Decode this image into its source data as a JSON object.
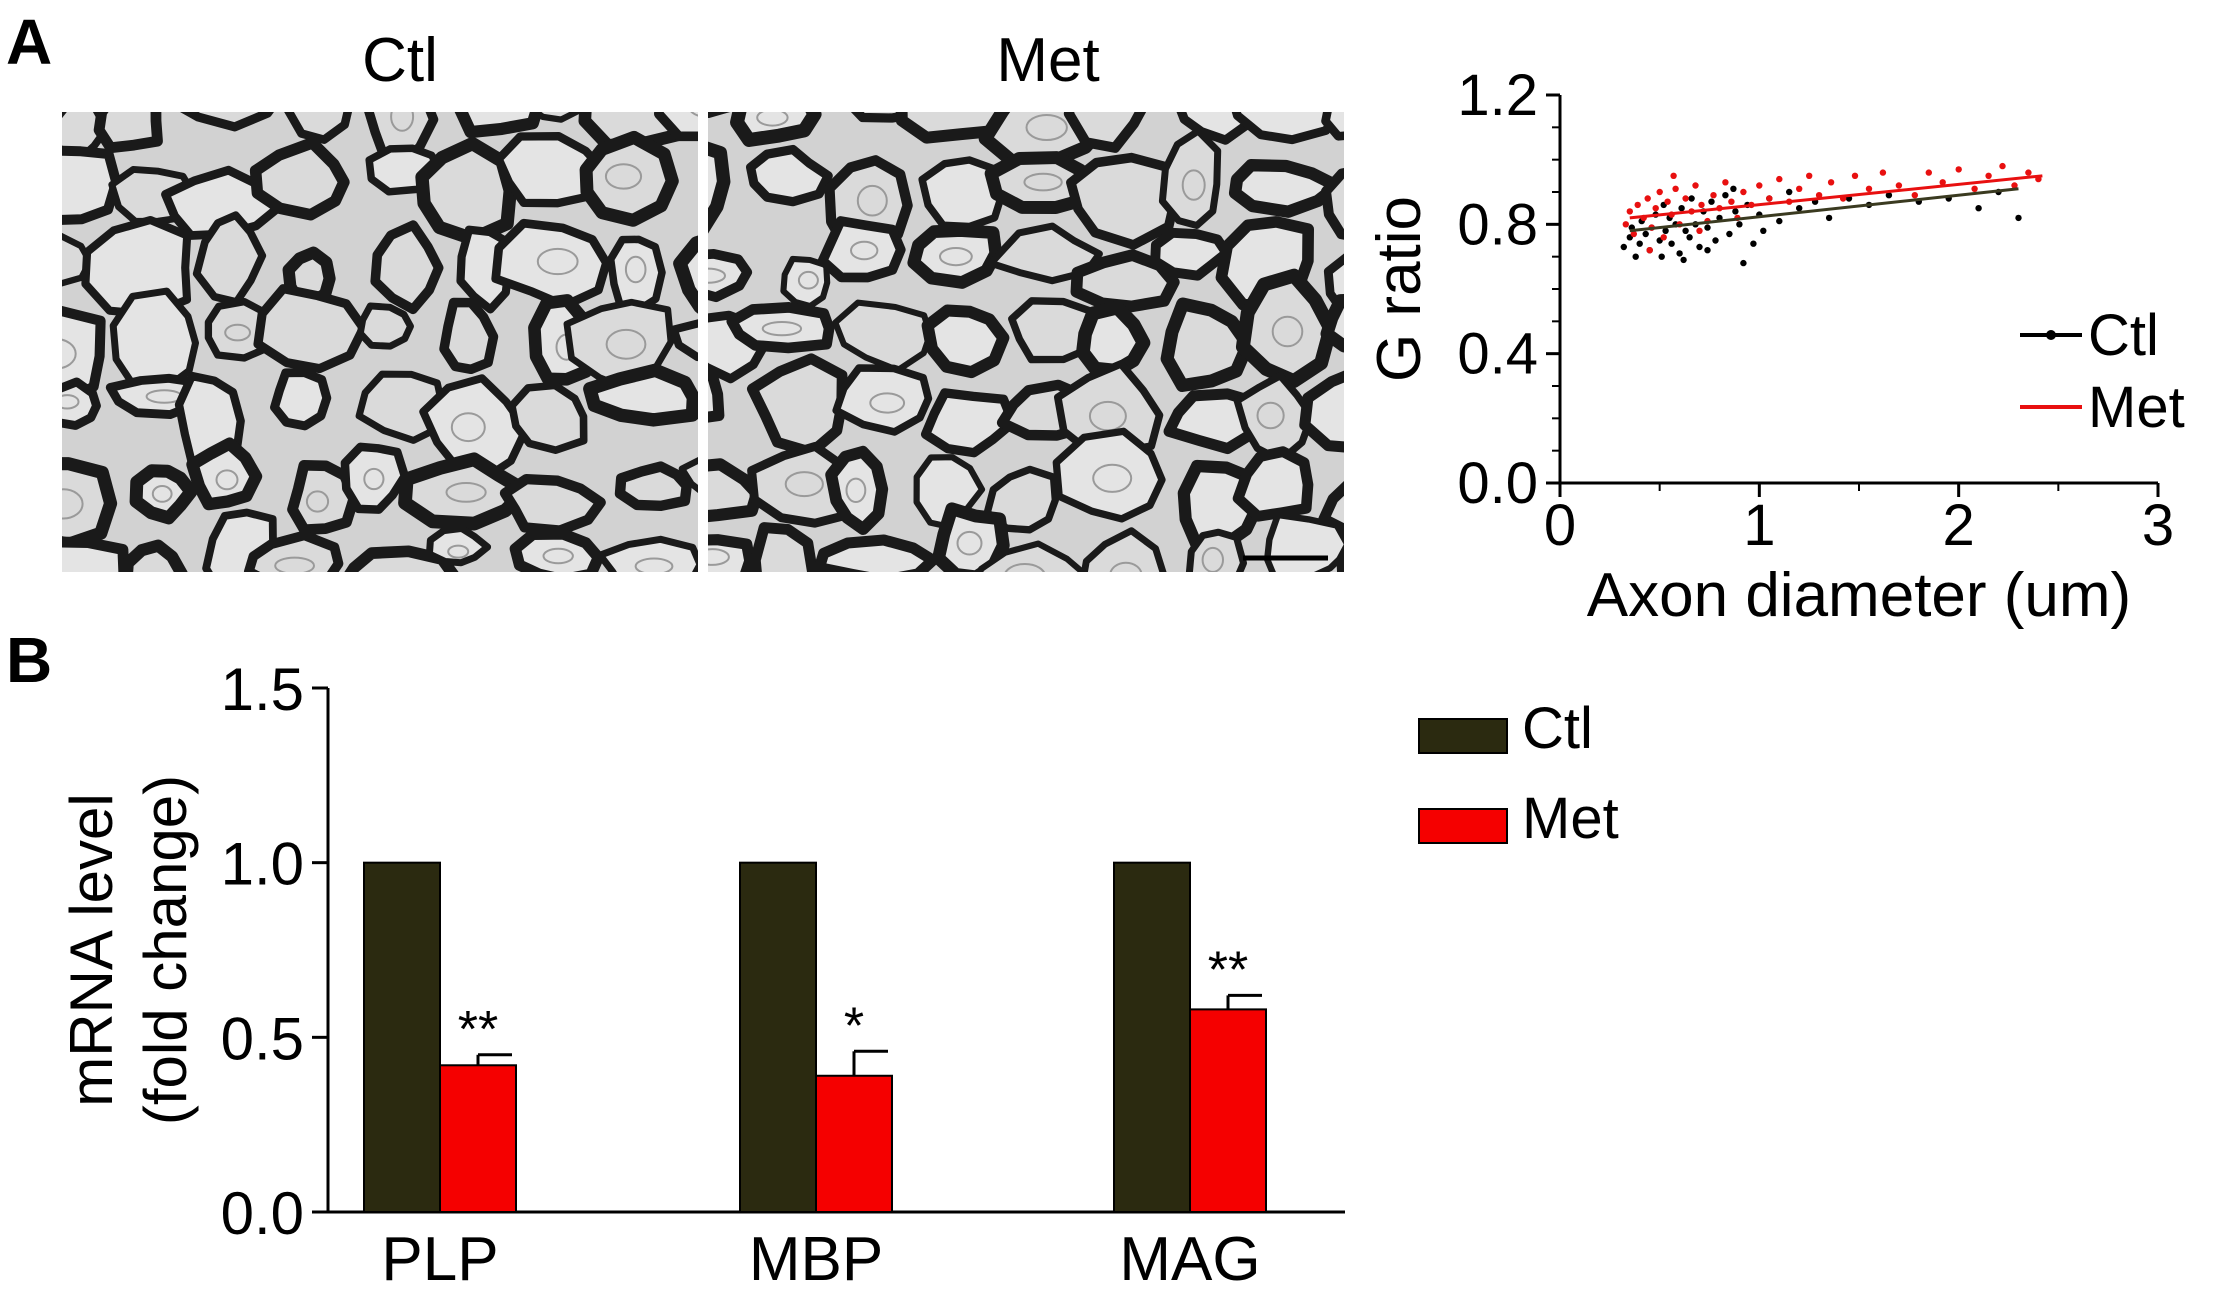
{
  "panel_a": {
    "letter": "A",
    "images": [
      {
        "title": "Ctl"
      },
      {
        "title": "Met"
      }
    ]
  },
  "panel_b": {
    "letter": "B"
  },
  "colors": {
    "ctl_scatter": "#000000",
    "met_scatter": "#e81010",
    "ctl_bar": "#2b2a10",
    "met_bar": "#f50000"
  },
  "chart_data": [
    {
      "type": "scatter",
      "xlabel": "Axon diameter (um)",
      "ylabel": "G ratio",
      "xlim": [
        0,
        3
      ],
      "ylim": [
        0.0,
        1.2
      ],
      "xticks": [
        "0",
        "1",
        "2",
        "3"
      ],
      "yticks": [
        "0.0",
        "0.4",
        "0.8",
        "1.2"
      ],
      "legend_position": "right",
      "series": [
        {
          "name": "Ctl",
          "color": "#000000",
          "fit": [
            [
              0.35,
              0.78
            ],
            [
              2.3,
              0.91
            ]
          ],
          "points": [
            [
              0.32,
              0.73
            ],
            [
              0.35,
              0.76
            ],
            [
              0.36,
              0.79
            ],
            [
              0.38,
              0.7
            ],
            [
              0.4,
              0.74
            ],
            [
              0.41,
              0.81
            ],
            [
              0.43,
              0.77
            ],
            [
              0.45,
              0.72
            ],
            [
              0.46,
              0.79
            ],
            [
              0.48,
              0.83
            ],
            [
              0.5,
              0.75
            ],
            [
              0.51,
              0.7
            ],
            [
              0.53,
              0.78
            ],
            [
              0.55,
              0.82
            ],
            [
              0.56,
              0.74
            ],
            [
              0.58,
              0.8
            ],
            [
              0.6,
              0.71
            ],
            [
              0.61,
              0.85
            ],
            [
              0.63,
              0.78
            ],
            [
              0.65,
              0.76
            ],
            [
              0.66,
              0.88
            ],
            [
              0.68,
              0.8
            ],
            [
              0.7,
              0.73
            ],
            [
              0.72,
              0.84
            ],
            [
              0.74,
              0.79
            ],
            [
              0.76,
              0.87
            ],
            [
              0.78,
              0.75
            ],
            [
              0.8,
              0.82
            ],
            [
              0.83,
              0.89
            ],
            [
              0.85,
              0.77
            ],
            [
              0.88,
              0.84
            ],
            [
              0.9,
              0.8
            ],
            [
              0.92,
              0.68
            ],
            [
              0.94,
              0.86
            ],
            [
              0.97,
              0.74
            ],
            [
              1.0,
              0.83
            ],
            [
              1.05,
              0.88
            ],
            [
              1.1,
              0.81
            ],
            [
              1.15,
              0.9
            ],
            [
              1.2,
              0.85
            ],
            [
              1.28,
              0.87
            ],
            [
              1.35,
              0.82
            ],
            [
              1.45,
              0.88
            ],
            [
              1.55,
              0.86
            ],
            [
              1.65,
              0.89
            ],
            [
              1.8,
              0.87
            ],
            [
              1.95,
              0.88
            ],
            [
              2.1,
              0.85
            ],
            [
              2.2,
              0.9
            ],
            [
              2.3,
              0.82
            ],
            [
              0.52,
              0.86
            ],
            [
              0.62,
              0.69
            ],
            [
              0.74,
              0.72
            ],
            [
              0.87,
              0.91
            ],
            [
              1.02,
              0.78
            ]
          ]
        },
        {
          "name": "Met",
          "color": "#e81010",
          "fit": [
            [
              0.35,
              0.82
            ],
            [
              2.42,
              0.95
            ]
          ],
          "points": [
            [
              0.33,
              0.8
            ],
            [
              0.35,
              0.84
            ],
            [
              0.37,
              0.77
            ],
            [
              0.39,
              0.86
            ],
            [
              0.42,
              0.82
            ],
            [
              0.44,
              0.88
            ],
            [
              0.46,
              0.79
            ],
            [
              0.48,
              0.85
            ],
            [
              0.5,
              0.9
            ],
            [
              0.52,
              0.76
            ],
            [
              0.54,
              0.87
            ],
            [
              0.56,
              0.83
            ],
            [
              0.58,
              0.91
            ],
            [
              0.6,
              0.8
            ],
            [
              0.63,
              0.88
            ],
            [
              0.66,
              0.84
            ],
            [
              0.68,
              0.92
            ],
            [
              0.71,
              0.86
            ],
            [
              0.74,
              0.81
            ],
            [
              0.77,
              0.89
            ],
            [
              0.8,
              0.85
            ],
            [
              0.83,
              0.93
            ],
            [
              0.86,
              0.87
            ],
            [
              0.89,
              0.82
            ],
            [
              0.92,
              0.9
            ],
            [
              0.96,
              0.86
            ],
            [
              1.0,
              0.92
            ],
            [
              1.05,
              0.88
            ],
            [
              1.1,
              0.94
            ],
            [
              1.15,
              0.87
            ],
            [
              1.2,
              0.91
            ],
            [
              1.25,
              0.95
            ],
            [
              1.3,
              0.89
            ],
            [
              1.36,
              0.93
            ],
            [
              1.42,
              0.88
            ],
            [
              1.48,
              0.95
            ],
            [
              1.55,
              0.91
            ],
            [
              1.62,
              0.96
            ],
            [
              1.7,
              0.92
            ],
            [
              1.78,
              0.89
            ],
            [
              1.85,
              0.96
            ],
            [
              1.92,
              0.93
            ],
            [
              2.0,
              0.97
            ],
            [
              2.08,
              0.91
            ],
            [
              2.15,
              0.95
            ],
            [
              2.22,
              0.98
            ],
            [
              2.28,
              0.92
            ],
            [
              2.35,
              0.96
            ],
            [
              2.4,
              0.94
            ],
            [
              0.45,
              0.72
            ],
            [
              0.57,
              0.95
            ],
            [
              0.7,
              0.78
            ]
          ]
        }
      ]
    },
    {
      "type": "bar",
      "ylabel": "mRNA level (fold change)",
      "ylabel_lines": [
        "mRNA level",
        "(fold change)"
      ],
      "ylim": [
        0.0,
        1.5
      ],
      "yticks": [
        "0.0",
        "0.5",
        "1.0",
        "1.5"
      ],
      "categories": [
        "PLP",
        "MBP",
        "MAG"
      ],
      "legend_position": "top-right",
      "series": [
        {
          "name": "Ctl",
          "color": "#2b2a10",
          "values": [
            1.0,
            1.0,
            1.0
          ],
          "errors": [
            0,
            0,
            0
          ],
          "significance": [
            "",
            "",
            ""
          ]
        },
        {
          "name": "Met",
          "color": "#f50000",
          "values": [
            0.42,
            0.39,
            0.58
          ],
          "errors": [
            0.03,
            0.07,
            0.04
          ],
          "significance": [
            "**",
            "*",
            "**"
          ]
        }
      ]
    }
  ]
}
